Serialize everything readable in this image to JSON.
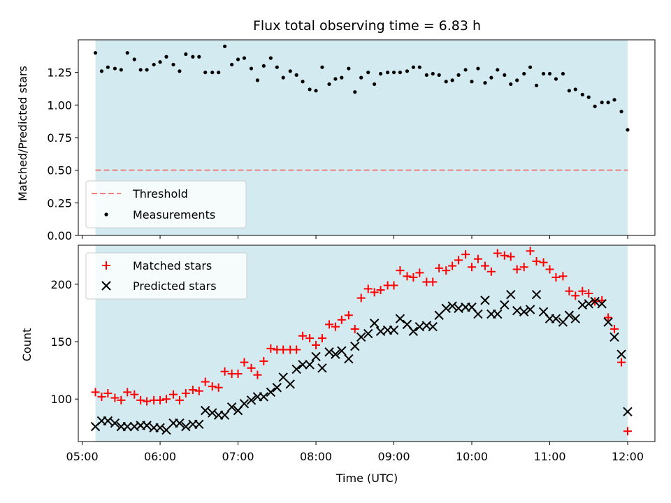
{
  "chart_data": {
    "type": "scatter",
    "title": "Flux total observing time = 6.83 h",
    "xlabel": "Time (UTC)",
    "x_ticks": [
      "05:00",
      "06:00",
      "07:00",
      "08:00",
      "09:00",
      "10:00",
      "11:00",
      "12:00"
    ],
    "x_range_hours": [
      4.95,
      12.35
    ],
    "observing_window_hours": [
      5.17,
      12.0
    ],
    "shade_color": "#d3ebf0",
    "top_panel": {
      "ylabel": "Matched/Predicted stars",
      "ylim": [
        0,
        1.5
      ],
      "yticks": [
        "0.00",
        "0.25",
        "0.50",
        "0.75",
        "1.00",
        "1.25"
      ],
      "threshold": {
        "name": "Threshold",
        "value": 0.5,
        "color": "#f08080"
      },
      "measurements": {
        "name": "Measurements",
        "color": "#000000",
        "points": [
          [
            5.17,
            1.4
          ],
          [
            5.25,
            1.26
          ],
          [
            5.33,
            1.29
          ],
          [
            5.42,
            1.28
          ],
          [
            5.5,
            1.27
          ],
          [
            5.58,
            1.4
          ],
          [
            5.67,
            1.35
          ],
          [
            5.75,
            1.27
          ],
          [
            5.83,
            1.27
          ],
          [
            5.92,
            1.31
          ],
          [
            6.0,
            1.33
          ],
          [
            6.08,
            1.37
          ],
          [
            6.17,
            1.31
          ],
          [
            6.25,
            1.26
          ],
          [
            6.33,
            1.39
          ],
          [
            6.42,
            1.37
          ],
          [
            6.5,
            1.37
          ],
          [
            6.58,
            1.25
          ],
          [
            6.67,
            1.25
          ],
          [
            6.75,
            1.25
          ],
          [
            6.83,
            1.45
          ],
          [
            6.92,
            1.31
          ],
          [
            7.0,
            1.35
          ],
          [
            7.08,
            1.36
          ],
          [
            7.17,
            1.28
          ],
          [
            7.25,
            1.19
          ],
          [
            7.33,
            1.3
          ],
          [
            7.42,
            1.36
          ],
          [
            7.5,
            1.29
          ],
          [
            7.58,
            1.21
          ],
          [
            7.67,
            1.26
          ],
          [
            7.75,
            1.23
          ],
          [
            7.83,
            1.18
          ],
          [
            7.92,
            1.12
          ],
          [
            8.0,
            1.11
          ],
          [
            8.08,
            1.29
          ],
          [
            8.17,
            1.16
          ],
          [
            8.25,
            1.2
          ],
          [
            8.33,
            1.21
          ],
          [
            8.42,
            1.28
          ],
          [
            8.5,
            1.1
          ],
          [
            8.58,
            1.21
          ],
          [
            8.67,
            1.25
          ],
          [
            8.75,
            1.16
          ],
          [
            8.83,
            1.24
          ],
          [
            8.92,
            1.25
          ],
          [
            9.0,
            1.25
          ],
          [
            9.08,
            1.25
          ],
          [
            9.17,
            1.26
          ],
          [
            9.25,
            1.29
          ],
          [
            9.33,
            1.29
          ],
          [
            9.42,
            1.23
          ],
          [
            9.5,
            1.24
          ],
          [
            9.58,
            1.23
          ],
          [
            9.67,
            1.18
          ],
          [
            9.75,
            1.19
          ],
          [
            9.83,
            1.23
          ],
          [
            9.92,
            1.27
          ],
          [
            10.0,
            1.18
          ],
          [
            10.08,
            1.28
          ],
          [
            10.17,
            1.17
          ],
          [
            10.25,
            1.21
          ],
          [
            10.33,
            1.27
          ],
          [
            10.42,
            1.23
          ],
          [
            10.5,
            1.16
          ],
          [
            10.58,
            1.19
          ],
          [
            10.67,
            1.24
          ],
          [
            10.75,
            1.29
          ],
          [
            10.83,
            1.15
          ],
          [
            10.92,
            1.24
          ],
          [
            11.0,
            1.24
          ],
          [
            11.08,
            1.2
          ],
          [
            11.17,
            1.24
          ],
          [
            11.25,
            1.11
          ],
          [
            11.33,
            1.12
          ],
          [
            11.42,
            1.08
          ],
          [
            11.5,
            1.06
          ],
          [
            11.58,
            0.99
          ],
          [
            11.67,
            1.02
          ],
          [
            11.75,
            1.02
          ],
          [
            11.83,
            1.04
          ],
          [
            11.92,
            0.95
          ],
          [
            12.0,
            0.81
          ]
        ]
      }
    },
    "bottom_panel": {
      "ylabel": "Count",
      "ylim": [
        63,
        234
      ],
      "yticks": [
        "100",
        "150",
        "200"
      ],
      "series": [
        {
          "name": "Matched stars",
          "marker": "+",
          "color": "#ff0000",
          "points": [
            [
              5.17,
              106
            ],
            [
              5.25,
              102
            ],
            [
              5.33,
              105
            ],
            [
              5.42,
              101
            ],
            [
              5.5,
              99
            ],
            [
              5.58,
              106
            ],
            [
              5.67,
              104
            ],
            [
              5.75,
              99
            ],
            [
              5.83,
              98
            ],
            [
              5.92,
              99
            ],
            [
              6.0,
              99
            ],
            [
              6.08,
              100
            ],
            [
              6.17,
              104
            ],
            [
              6.25,
              99
            ],
            [
              6.33,
              105
            ],
            [
              6.42,
              108
            ],
            [
              6.5,
              107
            ],
            [
              6.58,
              115
            ],
            [
              6.67,
              111
            ],
            [
              6.75,
              110
            ],
            [
              6.83,
              124
            ],
            [
              6.92,
              122
            ],
            [
              7.0,
              122
            ],
            [
              7.08,
              132
            ],
            [
              7.17,
              127
            ],
            [
              7.25,
              121
            ],
            [
              7.33,
              133
            ],
            [
              7.42,
              144
            ],
            [
              7.5,
              143
            ],
            [
              7.58,
              143
            ],
            [
              7.67,
              143
            ],
            [
              7.75,
              143
            ],
            [
              7.83,
              155
            ],
            [
              7.92,
              153
            ],
            [
              8.0,
              147
            ],
            [
              8.08,
              153
            ],
            [
              8.17,
              165
            ],
            [
              8.25,
              163
            ],
            [
              8.33,
              169
            ],
            [
              8.42,
              173
            ],
            [
              8.5,
              161
            ],
            [
              8.58,
              188
            ],
            [
              8.67,
              196
            ],
            [
              8.75,
              193
            ],
            [
              8.83,
              195
            ],
            [
              8.92,
              199
            ],
            [
              9.0,
              199
            ],
            [
              9.08,
              212
            ],
            [
              9.17,
              207
            ],
            [
              9.25,
              206
            ],
            [
              9.33,
              210
            ],
            [
              9.42,
              202
            ],
            [
              9.5,
              202
            ],
            [
              9.58,
              214
            ],
            [
              9.67,
              212
            ],
            [
              9.75,
              216
            ],
            [
              9.83,
              221
            ],
            [
              9.92,
              226
            ],
            [
              10.0,
              215
            ],
            [
              10.08,
              222
            ],
            [
              10.17,
              216
            ],
            [
              10.25,
              211
            ],
            [
              10.33,
              227
            ],
            [
              10.42,
              225
            ],
            [
              10.5,
              224
            ],
            [
              10.58,
              213
            ],
            [
              10.67,
              215
            ],
            [
              10.75,
              229
            ],
            [
              10.83,
              220
            ],
            [
              10.92,
              219
            ],
            [
              11.0,
              213
            ],
            [
              11.08,
              206
            ],
            [
              11.17,
              207
            ],
            [
              11.25,
              194
            ],
            [
              11.33,
              190
            ],
            [
              11.42,
              194
            ],
            [
              11.5,
              192
            ],
            [
              11.58,
              185
            ],
            [
              11.67,
              186
            ],
            [
              11.75,
              171
            ],
            [
              11.83,
              161
            ],
            [
              11.92,
              132
            ],
            [
              12.0,
              72
            ]
          ]
        },
        {
          "name": "Predicted stars",
          "marker": "x",
          "color": "#000000",
          "points": [
            [
              5.17,
              76
            ],
            [
              5.25,
              81
            ],
            [
              5.33,
              81
            ],
            [
              5.42,
              79
            ],
            [
              5.5,
              76
            ],
            [
              5.58,
              76
            ],
            [
              5.67,
              76
            ],
            [
              5.75,
              77
            ],
            [
              5.83,
              77
            ],
            [
              5.92,
              75
            ],
            [
              6.0,
              75
            ],
            [
              6.08,
              73
            ],
            [
              6.17,
              79
            ],
            [
              6.25,
              79
            ],
            [
              6.33,
              76
            ],
            [
              6.42,
              78
            ],
            [
              6.5,
              78
            ],
            [
              6.58,
              90
            ],
            [
              6.67,
              88
            ],
            [
              6.75,
              86
            ],
            [
              6.83,
              86
            ],
            [
              6.92,
              93
            ],
            [
              7.0,
              90
            ],
            [
              7.08,
              96
            ],
            [
              7.17,
              99
            ],
            [
              7.25,
              102
            ],
            [
              7.33,
              102
            ],
            [
              7.42,
              106
            ],
            [
              7.5,
              110
            ],
            [
              7.58,
              119
            ],
            [
              7.67,
              113
            ],
            [
              7.75,
              126
            ],
            [
              7.83,
              130
            ],
            [
              7.92,
              130
            ],
            [
              8.0,
              137
            ],
            [
              8.08,
              127
            ],
            [
              8.17,
              141
            ],
            [
              8.25,
              139
            ],
            [
              8.33,
              142
            ],
            [
              8.42,
              135
            ],
            [
              8.5,
              146
            ],
            [
              8.58,
              154
            ],
            [
              8.67,
              157
            ],
            [
              8.75,
              166
            ],
            [
              8.83,
              159
            ],
            [
              8.92,
              160
            ],
            [
              9.0,
              160
            ],
            [
              9.08,
              170
            ],
            [
              9.17,
              165
            ],
            [
              9.25,
              159
            ],
            [
              9.33,
              163
            ],
            [
              9.42,
              164
            ],
            [
              9.5,
              163
            ],
            [
              9.58,
              173
            ],
            [
              9.67,
              179
            ],
            [
              9.75,
              181
            ],
            [
              9.83,
              179
            ],
            [
              9.92,
              180
            ],
            [
              10.0,
              180
            ],
            [
              10.08,
              174
            ],
            [
              10.17,
              186
            ],
            [
              10.25,
              174
            ],
            [
              10.33,
              174
            ],
            [
              10.42,
              182
            ],
            [
              10.5,
              191
            ],
            [
              10.58,
              177
            ],
            [
              10.67,
              176
            ],
            [
              10.75,
              178
            ],
            [
              10.83,
              191
            ],
            [
              10.92,
              176
            ],
            [
              11.0,
              170
            ],
            [
              11.08,
              170
            ],
            [
              11.17,
              167
            ],
            [
              11.25,
              173
            ],
            [
              11.33,
              170
            ],
            [
              11.42,
              182
            ],
            [
              11.5,
              183
            ],
            [
              11.58,
              185
            ],
            [
              11.67,
              183
            ],
            [
              11.75,
              167
            ],
            [
              11.83,
              154
            ],
            [
              11.92,
              139
            ],
            [
              12.0,
              89
            ]
          ]
        }
      ]
    }
  }
}
